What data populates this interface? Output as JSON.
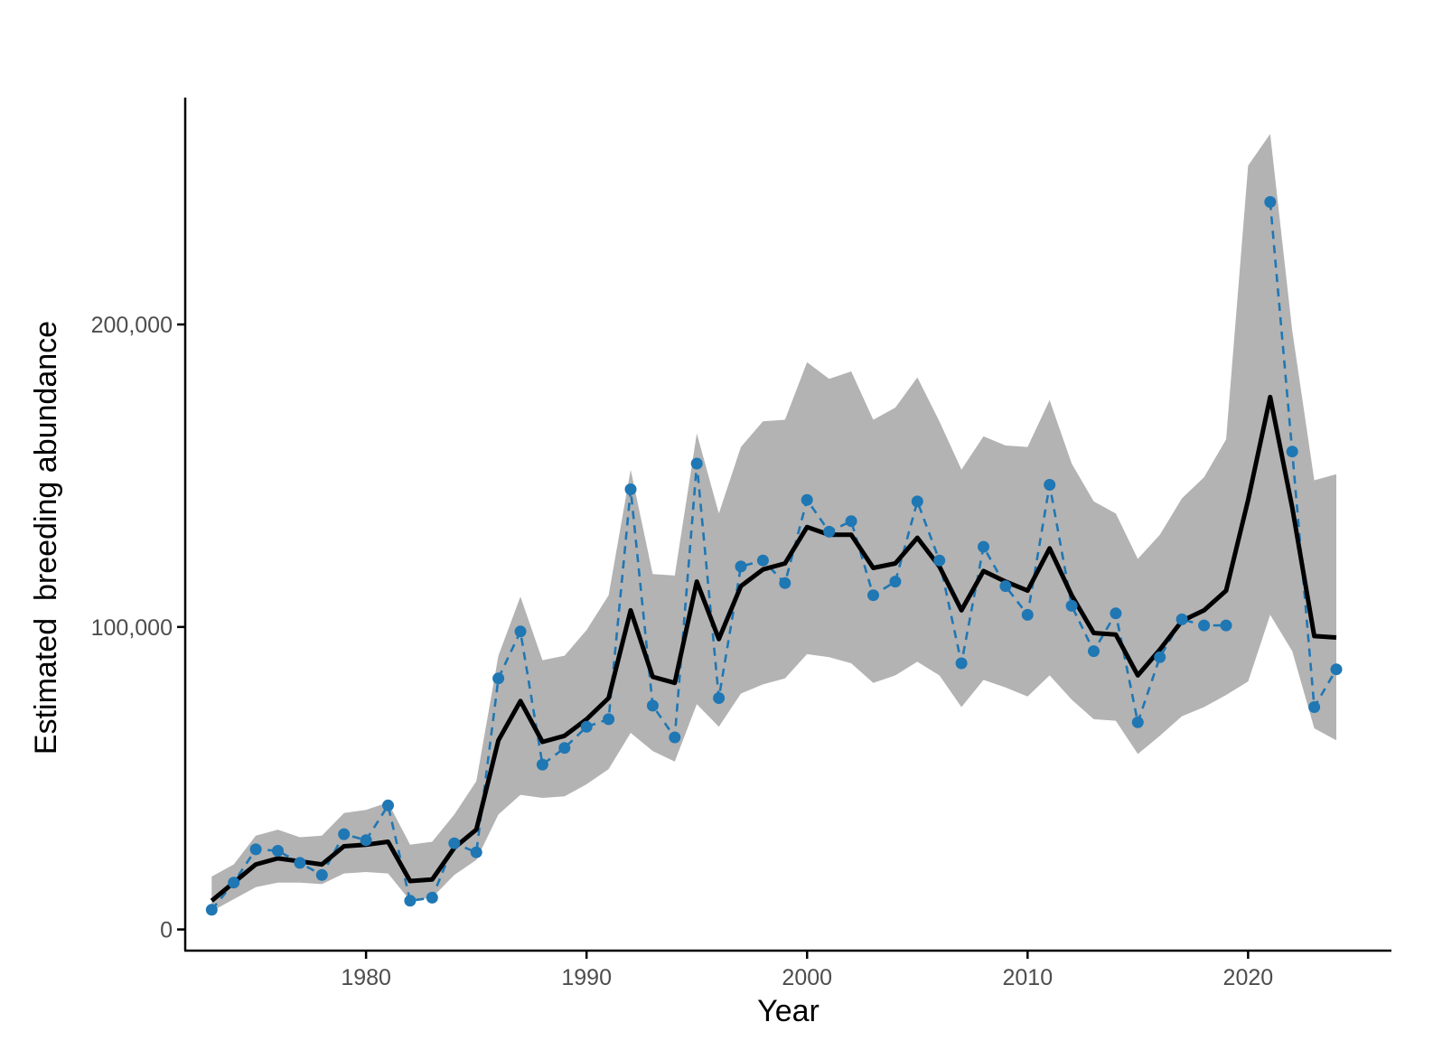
{
  "chart_data": {
    "type": "line",
    "title": "",
    "xlabel": "Year",
    "ylabel": "Estimated  breeding abundance",
    "xlim": [
      1971.8,
      2026.5
    ],
    "ylim": [
      -7000,
      275000
    ],
    "x_ticks": [
      1980,
      1990,
      2000,
      2010,
      2020
    ],
    "y_ticks": [
      0,
      100000,
      200000
    ],
    "x_tick_labels": [
      "1980",
      "1990",
      "2000",
      "2010",
      "2020"
    ],
    "y_tick_labels": [
      "0",
      "100,000",
      "200,000"
    ],
    "grid": false,
    "legend": "none",
    "colors": {
      "ribbon": "#b3b3b3",
      "estimate": "#000000",
      "observed": "#1f77b4",
      "axis": "#000000"
    },
    "x": [
      1973,
      1974,
      1975,
      1976,
      1977,
      1978,
      1979,
      1980,
      1981,
      1982,
      1983,
      1984,
      1985,
      1986,
      1987,
      1988,
      1989,
      1990,
      1991,
      1992,
      1993,
      1994,
      1995,
      1996,
      1997,
      1998,
      1999,
      2000,
      2001,
      2002,
      2003,
      2004,
      2005,
      2006,
      2007,
      2008,
      2009,
      2010,
      2011,
      2012,
      2013,
      2014,
      2015,
      2016,
      2017,
      2018,
      2019,
      2020,
      2021,
      2022,
      2023,
      2024
    ],
    "series": [
      {
        "kind": "ribbon",
        "lower": [
          6000,
          10000,
          14000,
          15500,
          15500,
          15000,
          18500,
          19000,
          18500,
          9500,
          10500,
          18000,
          23000,
          38000,
          44500,
          43500,
          44000,
          48000,
          53000,
          65000,
          59000,
          55500,
          74500,
          67000,
          78000,
          81000,
          83000,
          91000,
          90000,
          88000,
          81500,
          84000,
          88500,
          84000,
          73500,
          82500,
          80000,
          77000,
          84000,
          76000,
          69500,
          69000,
          58000,
          64000,
          70500,
          73500,
          77500,
          82000,
          104000,
          92000,
          66500,
          62500
        ],
        "upper": [
          17500,
          21500,
          31000,
          33000,
          30500,
          31000,
          38500,
          39500,
          42000,
          28000,
          29000,
          38000,
          49000,
          90500,
          110000,
          89000,
          90500,
          99000,
          110500,
          152000,
          117500,
          117000,
          164000,
          137500,
          159500,
          168000,
          168500,
          187500,
          182000,
          184500,
          168500,
          172500,
          182500,
          168000,
          152000,
          163000,
          160000,
          159500,
          175000,
          154000,
          141500,
          137500,
          122500,
          130500,
          142500,
          149500,
          162000,
          252500,
          263000,
          198000,
          148500,
          150500
        ]
      },
      {
        "kind": "line",
        "values": [
          9500,
          15500,
          21500,
          23500,
          22500,
          21500,
          27500,
          28000,
          29000,
          16000,
          16500,
          27000,
          33000,
          62500,
          75500,
          62000,
          64000,
          69500,
          76500,
          105500,
          83500,
          81500,
          115000,
          96000,
          113500,
          119000,
          121000,
          133000,
          130500,
          130500,
          119500,
          121000,
          129500,
          120000,
          105500,
          118500,
          115000,
          112000,
          126000,
          110500,
          98000,
          97500,
          84000,
          92500,
          102000,
          105500,
          112000,
          142000,
          176000,
          139500,
          97000,
          96500
        ]
      },
      {
        "kind": "points-dashed",
        "values": [
          6500,
          15500,
          26500,
          26000,
          22000,
          18000,
          31500,
          29500,
          41000,
          9500,
          10500,
          28500,
          25500,
          83000,
          98500,
          54500,
          60000,
          67000,
          69500,
          145500,
          74000,
          63500,
          154000,
          76500,
          120000,
          122000,
          114500,
          142000,
          131500,
          135000,
          110500,
          115000,
          141500,
          122000,
          88000,
          126500,
          113500,
          104000,
          147000,
          107000,
          92000,
          104500,
          68500,
          90000,
          102500,
          100500,
          100500,
          null,
          240500,
          158000,
          73500,
          86000
        ]
      }
    ]
  }
}
